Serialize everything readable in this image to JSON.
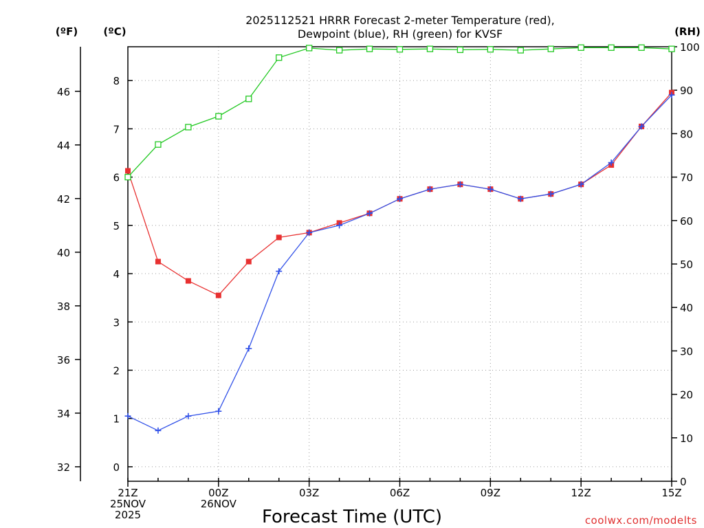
{
  "chart_data": {
    "type": "line",
    "title": [
      "2025112521 HRRR Forecast 2-meter Temperature (red),",
      "Dewpoint (blue), RH (green) for KVSF"
    ],
    "xlabel": "Forecast Time (UTC)",
    "watermark": "coolwx.com/modelts",
    "units": {
      "fahrenheit": "(ºF)",
      "celsius": "(ºC)",
      "rh": "(RH)"
    },
    "x_hours": [
      0,
      1,
      2,
      3,
      4,
      5,
      6,
      7,
      8,
      9,
      10,
      11,
      12,
      13,
      14,
      15,
      16,
      17,
      18
    ],
    "x_range": [
      0,
      18
    ],
    "x_ticks": [
      {
        "h": 0,
        "lines": [
          "21Z",
          "25NOV",
          "2025"
        ]
      },
      {
        "h": 3,
        "lines": [
          "00Z",
          "26NOV"
        ]
      },
      {
        "h": 6,
        "lines": [
          "03Z"
        ]
      },
      {
        "h": 9,
        "lines": [
          "06Z"
        ]
      },
      {
        "h": 12,
        "lines": [
          "09Z"
        ]
      },
      {
        "h": 15,
        "lines": [
          "12Z"
        ]
      },
      {
        "h": 18,
        "lines": [
          "15Z"
        ]
      }
    ],
    "y_celsius": {
      "range": [
        -0.3,
        8.7
      ],
      "ticks": [
        0,
        1,
        2,
        3,
        4,
        5,
        6,
        7,
        8
      ]
    },
    "y_fahrenheit": {
      "range": [
        31.46,
        47.66
      ],
      "ticks": [
        32,
        34,
        36,
        38,
        40,
        42,
        44,
        46
      ]
    },
    "y_rh": {
      "range": [
        0,
        100
      ],
      "ticks": [
        0,
        10,
        20,
        30,
        40,
        50,
        60,
        70,
        80,
        90,
        100
      ]
    },
    "grid": true,
    "series": [
      {
        "name": "Temperature",
        "axis": "celsius",
        "color": "#e83030",
        "marker": "filled-square",
        "values": [
          6.13,
          4.25,
          3.85,
          3.55,
          4.25,
          4.75,
          4.85,
          5.05,
          5.25,
          5.55,
          5.75,
          5.85,
          5.75,
          5.55,
          5.65,
          5.85,
          6.25,
          7.05,
          7.75
        ]
      },
      {
        "name": "Dewpoint",
        "axis": "celsius",
        "color": "#3050e8",
        "marker": "plus",
        "values": [
          1.05,
          0.75,
          1.05,
          1.15,
          2.45,
          4.05,
          4.85,
          5.0,
          5.25,
          5.55,
          5.75,
          5.85,
          5.75,
          5.55,
          5.65,
          5.85,
          6.3,
          7.05,
          7.7
        ]
      },
      {
        "name": "RH",
        "axis": "rh",
        "color": "#20c820",
        "marker": "open-square",
        "values": [
          70,
          77.5,
          81.5,
          84,
          88,
          97.5,
          99.7,
          99.2,
          99.5,
          99.4,
          99.5,
          99.3,
          99.4,
          99.2,
          99.5,
          99.8,
          99.8,
          99.8,
          99.5
        ]
      }
    ]
  }
}
